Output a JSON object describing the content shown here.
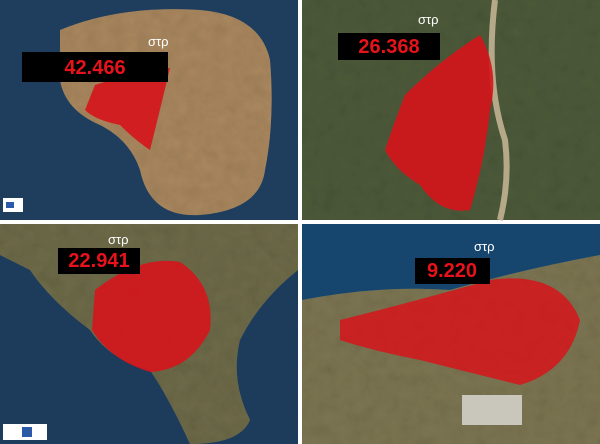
{
  "panels": [
    {
      "area": "42.466",
      "unit": "στρ"
    },
    {
      "area": "26.368",
      "unit": "στρ"
    },
    {
      "area": "22.941",
      "unit": "στρ"
    },
    {
      "area": "9.220",
      "unit": "στρ"
    }
  ]
}
